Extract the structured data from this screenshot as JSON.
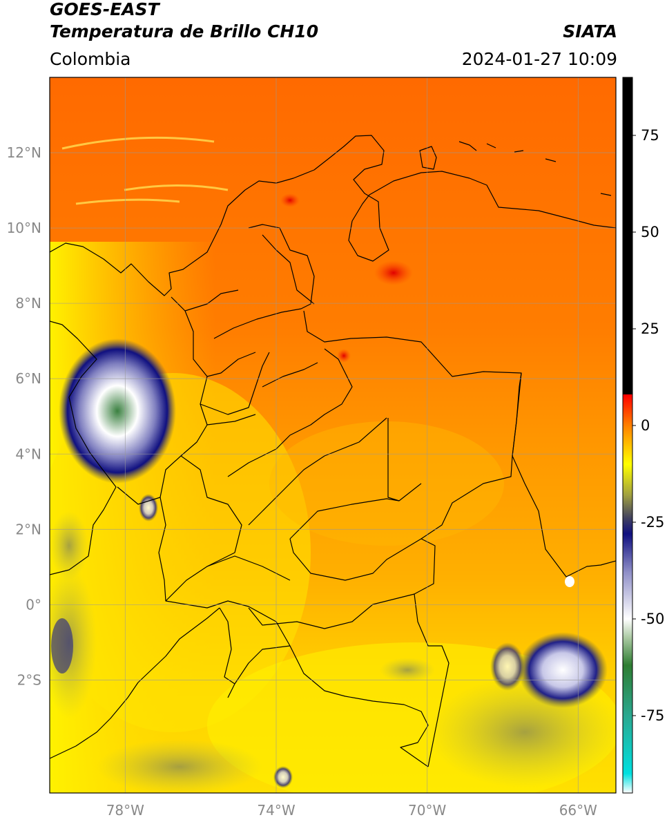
{
  "header": {
    "title_line1": "GOES-EAST",
    "title_line2": "Temperatura de Brillo CH10",
    "agency": "SIATA",
    "region": "Colombia",
    "timestamp": "2024-01-27 10:09"
  },
  "map": {
    "extent": {
      "lon_min": -80,
      "lon_max": -65,
      "lat_min": -5,
      "lat_max": 14
    },
    "lon_ticks": [
      {
        "value": -78,
        "label": "78°W"
      },
      {
        "value": -74,
        "label": "74°W"
      },
      {
        "value": -70,
        "label": "70°W"
      },
      {
        "value": -66,
        "label": "66°W"
      }
    ],
    "lat_ticks": [
      {
        "value": 12,
        "label": "12°N"
      },
      {
        "value": 10,
        "label": "10°N"
      },
      {
        "value": 8,
        "label": "8°N"
      },
      {
        "value": 6,
        "label": "6°N"
      },
      {
        "value": 4,
        "label": "4°N"
      },
      {
        "value": 2,
        "label": "2°N"
      },
      {
        "value": 0,
        "label": "0°"
      },
      {
        "value": -2,
        "label": "2°S"
      }
    ],
    "gridlines": true
  },
  "colorbar": {
    "range": [
      -95,
      90
    ],
    "ticks": [
      {
        "value": 75,
        "label": "75"
      },
      {
        "value": 50,
        "label": "50"
      },
      {
        "value": 25,
        "label": "25"
      },
      {
        "value": 0,
        "label": "0"
      },
      {
        "value": -25,
        "label": "-25"
      },
      {
        "value": -50,
        "label": "-50"
      },
      {
        "value": -75,
        "label": "-75"
      }
    ],
    "stops": [
      {
        "value": -95,
        "color": "#ffffff"
      },
      {
        "value": -90,
        "color": "#00e0e0"
      },
      {
        "value": -75,
        "color": "#2aa890"
      },
      {
        "value": -62,
        "color": "#2e7d32"
      },
      {
        "value": -55,
        "color": "#a8c8a0"
      },
      {
        "value": -50,
        "color": "#ffffff"
      },
      {
        "value": -38,
        "color": "#9090c8"
      },
      {
        "value": -28,
        "color": "#101080"
      },
      {
        "value": -24,
        "color": "#404060"
      },
      {
        "value": -18,
        "color": "#a0a040"
      },
      {
        "value": -10,
        "color": "#ffff00"
      },
      {
        "value": -5,
        "color": "#ffc000"
      },
      {
        "value": 0,
        "color": "#ff8000"
      },
      {
        "value": 8,
        "color": "#ff0000"
      },
      {
        "value": 8.01,
        "color": "#000000"
      },
      {
        "value": 90,
        "color": "#000000"
      }
    ]
  }
}
